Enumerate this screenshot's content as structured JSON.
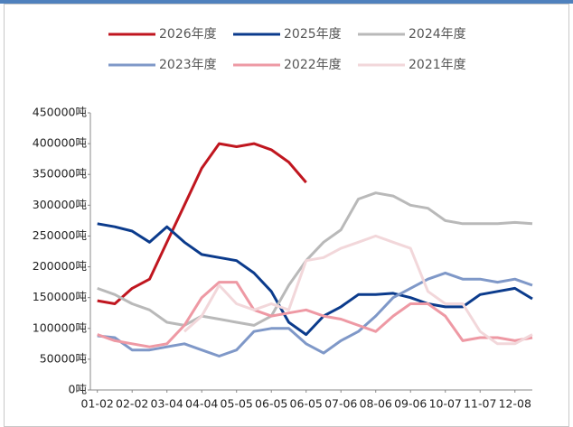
{
  "chart_data": {
    "type": "line",
    "x": [
      0,
      0.5,
      1,
      1.5,
      2,
      2.5,
      3,
      3.5,
      4,
      4.5,
      5,
      5.5,
      6,
      6.5,
      7,
      7.5,
      8,
      8.5,
      9,
      9.5,
      10,
      10.5,
      11,
      11.5,
      12,
      12.5
    ],
    "xlim": [
      -0.2,
      12.5
    ],
    "xticks": [
      {
        "value": 0,
        "label": "01-02"
      },
      {
        "value": 1,
        "label": "02-02"
      },
      {
        "value": 2,
        "label": "03-04"
      },
      {
        "value": 3,
        "label": "04-04"
      },
      {
        "value": 4,
        "label": "05-05"
      },
      {
        "value": 5,
        "label": "06-05"
      },
      {
        "value": 6,
        "label": "06-05"
      },
      {
        "value": 7,
        "label": "07-06"
      },
      {
        "value": 8,
        "label": "08-06"
      },
      {
        "value": 9,
        "label": "09-06"
      },
      {
        "value": 10,
        "label": "10-07"
      },
      {
        "value": 11,
        "label": "11-07"
      },
      {
        "value": 12,
        "label": "12-08"
      }
    ],
    "ylim": [
      0,
      450000
    ],
    "yticks": [
      {
        "value": 0,
        "label": "0吨"
      },
      {
        "value": 50000,
        "label": "50000吨"
      },
      {
        "value": 100000,
        "label": "100000吨"
      },
      {
        "value": 150000,
        "label": "150000吨"
      },
      {
        "value": 200000,
        "label": "200000吨"
      },
      {
        "value": 250000,
        "label": "250000吨"
      },
      {
        "value": 300000,
        "label": "300000吨"
      },
      {
        "value": 350000,
        "label": "350000吨"
      },
      {
        "value": 400000,
        "label": "400000吨"
      },
      {
        "value": 450000,
        "label": "450000吨"
      }
    ],
    "series": [
      {
        "name": "2026年度",
        "color": "#c0161f",
        "values": [
          145000,
          140000,
          165000,
          180000,
          240000,
          300000,
          360000,
          400000,
          395000,
          400000,
          390000,
          370000,
          337000,
          null,
          null,
          null,
          null,
          null,
          null,
          null,
          null,
          null,
          null,
          null,
          null,
          null
        ]
      },
      {
        "name": "2025年度",
        "color": "#0b3b8c",
        "values": [
          270000,
          265000,
          258000,
          240000,
          265000,
          240000,
          220000,
          215000,
          210000,
          190000,
          160000,
          110000,
          90000,
          120000,
          135000,
          155000,
          155000,
          157000,
          150000,
          140000,
          135000,
          135000,
          155000,
          160000,
          165000,
          148000
        ]
      },
      {
        "name": "2024年度",
        "color": "#b9b9b9",
        "values": [
          165000,
          155000,
          140000,
          130000,
          110000,
          105000,
          120000,
          115000,
          110000,
          105000,
          120000,
          170000,
          210000,
          240000,
          260000,
          310000,
          320000,
          315000,
          300000,
          295000,
          275000,
          270000,
          270000,
          270000,
          272000,
          270000
        ]
      },
      {
        "name": "2023年度",
        "color": "#7f98c8",
        "values": [
          88000,
          85000,
          65000,
          65000,
          70000,
          75000,
          65000,
          55000,
          65000,
          95000,
          100000,
          100000,
          75000,
          60000,
          80000,
          95000,
          120000,
          150000,
          165000,
          180000,
          190000,
          180000,
          180000,
          175000,
          180000,
          170000
        ]
      },
      {
        "name": "2022年度",
        "color": "#ee99a4",
        "values": [
          90000,
          80000,
          75000,
          70000,
          75000,
          105000,
          150000,
          175000,
          175000,
          130000,
          120000,
          125000,
          130000,
          120000,
          115000,
          105000,
          95000,
          120000,
          140000,
          140000,
          120000,
          80000,
          85000,
          85000,
          80000,
          85000
        ]
      },
      {
        "name": "2021年度",
        "color": "#f2d7da",
        "values": [
          null,
          null,
          null,
          null,
          null,
          95000,
          120000,
          170000,
          140000,
          130000,
          140000,
          130000,
          210000,
          215000,
          230000,
          240000,
          250000,
          240000,
          230000,
          160000,
          140000,
          140000,
          95000,
          75000,
          75000,
          90000
        ]
      }
    ]
  }
}
